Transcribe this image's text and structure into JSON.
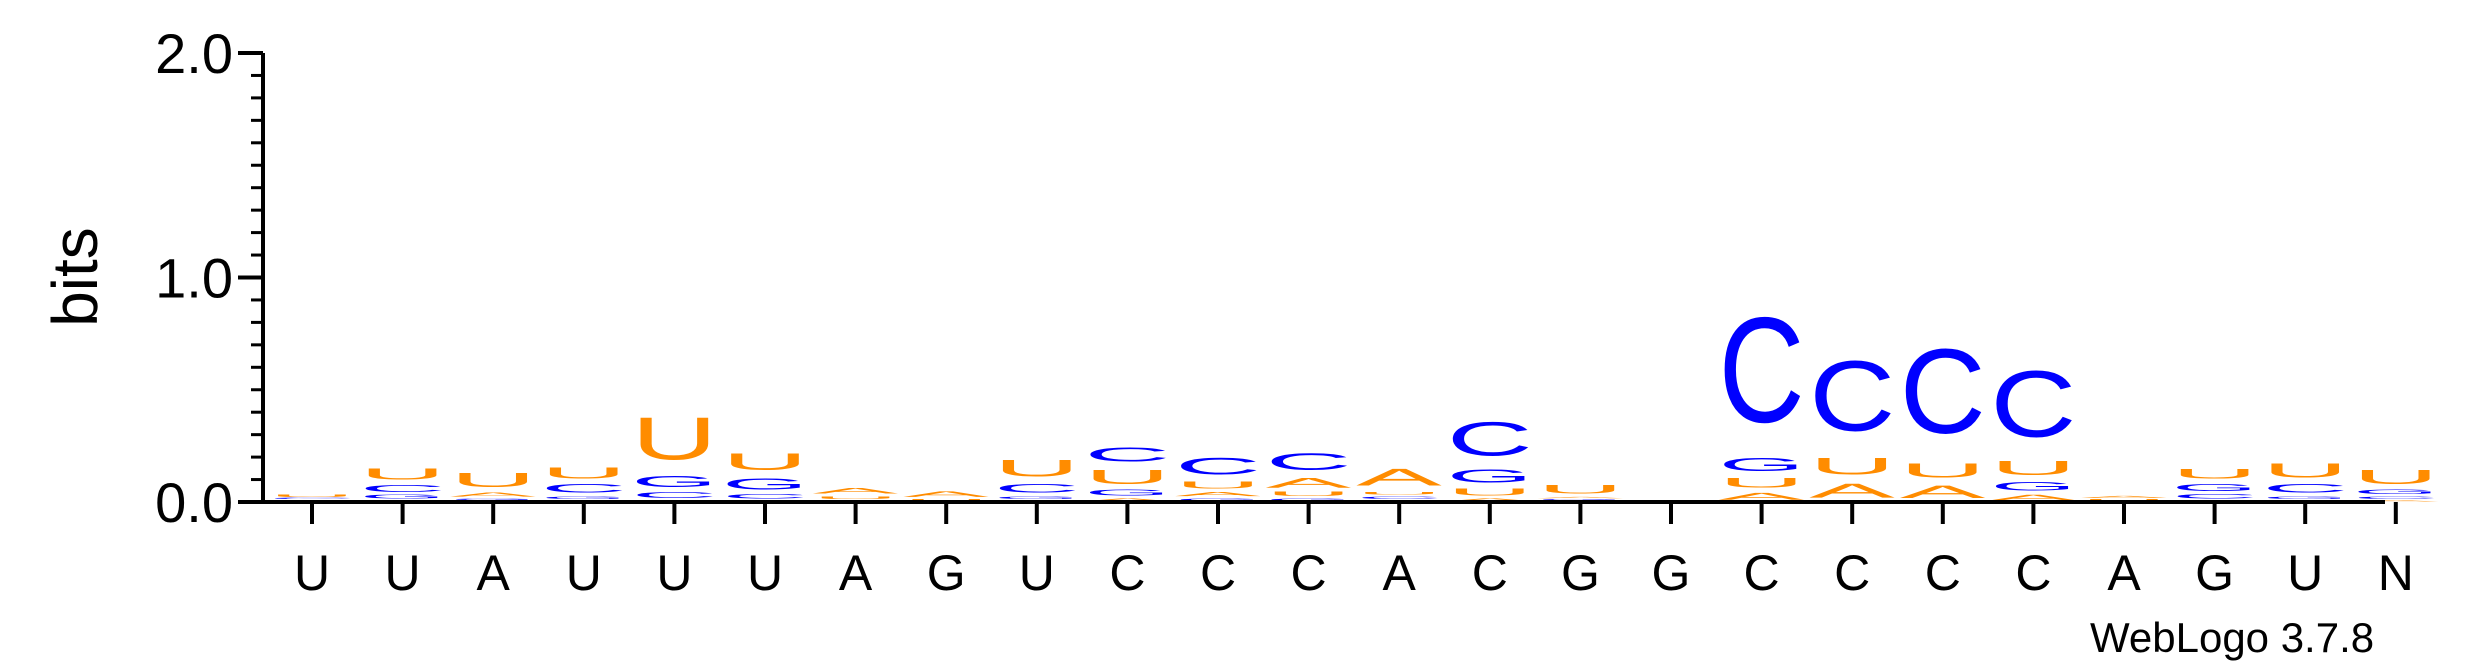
{
  "chart_data": {
    "type": "sequence-logo",
    "ylabel": "bits",
    "ylim": [
      0,
      2.0
    ],
    "yticks": [
      {
        "value": 0.0,
        "label": "0.0"
      },
      {
        "value": 1.0,
        "label": "1.0"
      },
      {
        "value": 2.0,
        "label": "2.0"
      }
    ],
    "colors": {
      "U": "#ff8c00",
      "A": "#ff8c00",
      "C": "#0000ff",
      "G": "#0000ff"
    },
    "positions": [
      {
        "label": "U",
        "stack": [
          {
            "letter": "A",
            "bits": 0.005
          },
          {
            "letter": "G",
            "bits": 0.006
          },
          {
            "letter": "C",
            "bits": 0.008
          },
          {
            "letter": "U",
            "bits": 0.02
          }
        ]
      },
      {
        "label": "U",
        "stack": [
          {
            "letter": "A",
            "bits": 0.01
          },
          {
            "letter": "G",
            "bits": 0.025
          },
          {
            "letter": "C",
            "bits": 0.05
          },
          {
            "letter": "U",
            "bits": 0.08
          }
        ]
      },
      {
        "label": "A",
        "stack": [
          {
            "letter": "C",
            "bits": 0.008
          },
          {
            "letter": "G",
            "bits": 0.01
          },
          {
            "letter": "A",
            "bits": 0.03
          },
          {
            "letter": "U",
            "bits": 0.1
          }
        ]
      },
      {
        "label": "U",
        "stack": [
          {
            "letter": "A",
            "bits": 0.01
          },
          {
            "letter": "G",
            "bits": 0.02
          },
          {
            "letter": "C",
            "bits": 0.06
          },
          {
            "letter": "U",
            "bits": 0.08
          }
        ]
      },
      {
        "label": "U",
        "stack": [
          {
            "letter": "A",
            "bits": 0.01
          },
          {
            "letter": "C",
            "bits": 0.04
          },
          {
            "letter": "G",
            "bits": 0.08
          },
          {
            "letter": "U",
            "bits": 0.3
          }
        ]
      },
      {
        "label": "U",
        "stack": [
          {
            "letter": "A",
            "bits": 0.01
          },
          {
            "letter": "C",
            "bits": 0.03
          },
          {
            "letter": "G",
            "bits": 0.08
          },
          {
            "letter": "U",
            "bits": 0.12
          }
        ]
      },
      {
        "label": "A",
        "stack": [
          {
            "letter": "G",
            "bits": 0.01
          },
          {
            "letter": "U",
            "bits": 0.02
          },
          {
            "letter": "A",
            "bits": 0.04
          }
        ]
      },
      {
        "label": "G",
        "stack": [
          {
            "letter": "C",
            "bits": 0.005
          },
          {
            "letter": "U",
            "bits": 0.01
          },
          {
            "letter": "A",
            "bits": 0.04
          }
        ]
      },
      {
        "label": "U",
        "stack": [
          {
            "letter": "A",
            "bits": 0.01
          },
          {
            "letter": "G",
            "bits": 0.02
          },
          {
            "letter": "C",
            "bits": 0.06
          },
          {
            "letter": "U",
            "bits": 0.12
          }
        ]
      },
      {
        "label": "C",
        "stack": [
          {
            "letter": "A",
            "bits": 0.02
          },
          {
            "letter": "G",
            "bits": 0.04
          },
          {
            "letter": "U",
            "bits": 0.1
          },
          {
            "letter": "C",
            "bits": 0.1
          }
        ]
      },
      {
        "label": "C",
        "stack": [
          {
            "letter": "G",
            "bits": 0.02
          },
          {
            "letter": "A",
            "bits": 0.03
          },
          {
            "letter": "U",
            "bits": 0.05
          },
          {
            "letter": "C",
            "bits": 0.12
          }
        ]
      },
      {
        "label": "C",
        "stack": [
          {
            "letter": "G",
            "bits": 0.02
          },
          {
            "letter": "U",
            "bits": 0.03
          },
          {
            "letter": "A",
            "bits": 0.07
          },
          {
            "letter": "C",
            "bits": 0.12
          }
        ]
      },
      {
        "label": "A",
        "stack": [
          {
            "letter": "G",
            "bits": 0.01
          },
          {
            "letter": "C",
            "bits": 0.02
          },
          {
            "letter": "U",
            "bits": 0.02
          },
          {
            "letter": "A",
            "bits": 0.12
          }
        ]
      },
      {
        "label": "C",
        "stack": [
          {
            "letter": "A",
            "bits": 0.02
          },
          {
            "letter": "U",
            "bits": 0.05
          },
          {
            "letter": "G",
            "bits": 0.09
          },
          {
            "letter": "C",
            "bits": 0.24
          }
        ]
      },
      {
        "label": "G",
        "stack": [
          {
            "letter": "C",
            "bits": 0.005
          },
          {
            "letter": "G",
            "bits": 0.01
          },
          {
            "letter": "A",
            "bits": 0.01
          },
          {
            "letter": "U",
            "bits": 0.06
          }
        ]
      },
      {
        "label": "G",
        "stack": []
      },
      {
        "label": "C",
        "stack": [
          {
            "letter": "A",
            "bits": 0.05
          },
          {
            "letter": "U",
            "bits": 0.07
          },
          {
            "letter": "G",
            "bits": 0.09
          },
          {
            "letter": "C",
            "bits": 0.75
          }
        ]
      },
      {
        "label": "C",
        "stack": [
          {
            "letter": "A",
            "bits": 0.1
          },
          {
            "letter": "U",
            "bits": 0.12
          },
          {
            "letter": "C",
            "bits": 0.5
          }
        ]
      },
      {
        "label": "C",
        "stack": [
          {
            "letter": "A",
            "bits": 0.09
          },
          {
            "letter": "U",
            "bits": 0.1
          },
          {
            "letter": "C",
            "bits": 0.6
          }
        ]
      },
      {
        "label": "C",
        "stack": [
          {
            "letter": "A",
            "bits": 0.04
          },
          {
            "letter": "G",
            "bits": 0.06
          },
          {
            "letter": "U",
            "bits": 0.1
          },
          {
            "letter": "C",
            "bits": 0.47
          }
        ]
      },
      {
        "label": "A",
        "stack": [
          {
            "letter": "C",
            "bits": 0.005
          },
          {
            "letter": "U",
            "bits": 0.01
          },
          {
            "letter": "A",
            "bits": 0.015
          }
        ]
      },
      {
        "label": "G",
        "stack": [
          {
            "letter": "A",
            "bits": 0.01
          },
          {
            "letter": "C",
            "bits": 0.03
          },
          {
            "letter": "G",
            "bits": 0.05
          },
          {
            "letter": "U",
            "bits": 0.07
          }
        ]
      },
      {
        "label": "U",
        "stack": [
          {
            "letter": "A",
            "bits": 0.01
          },
          {
            "letter": "G",
            "bits": 0.02
          },
          {
            "letter": "C",
            "bits": 0.06
          },
          {
            "letter": "U",
            "bits": 0.1
          }
        ]
      },
      {
        "label": "N",
        "stack": [
          {
            "letter": "A",
            "bits": 0.01
          },
          {
            "letter": "C",
            "bits": 0.02
          },
          {
            "letter": "G",
            "bits": 0.03
          },
          {
            "letter": "U",
            "bits": 0.1
          }
        ]
      }
    ]
  },
  "credit": "WebLogo 3.7.8"
}
